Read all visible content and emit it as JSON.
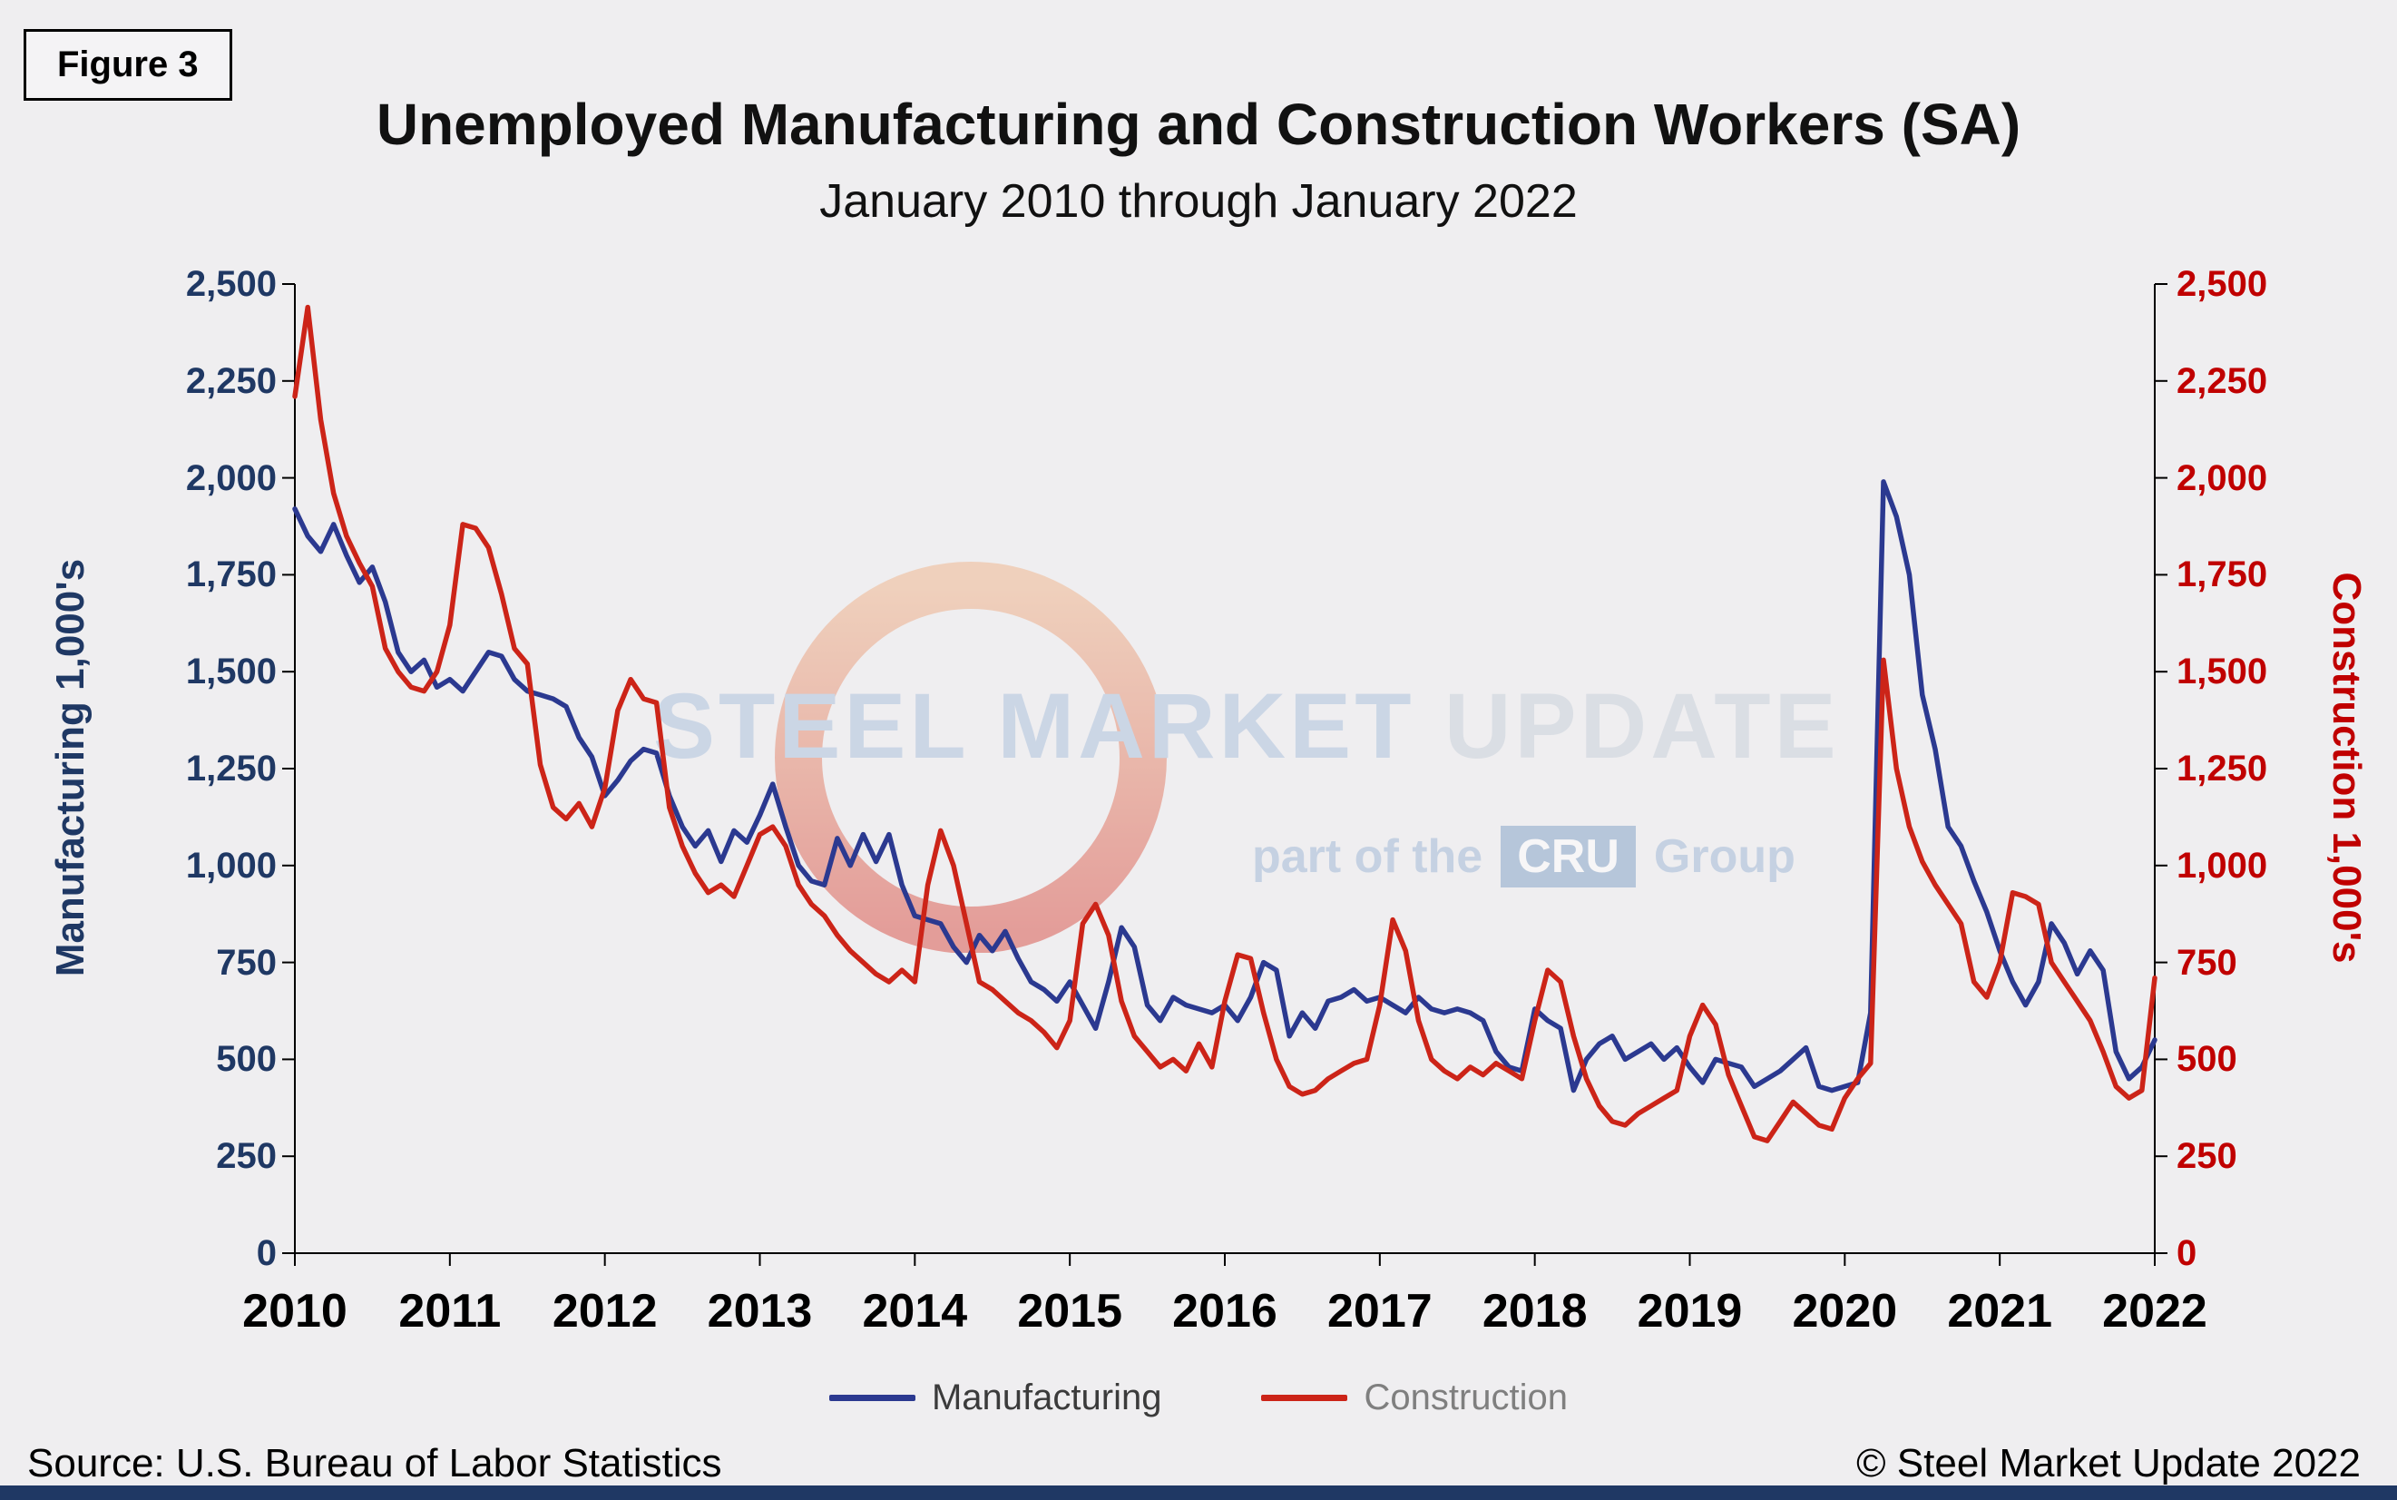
{
  "figure_label": "Figure 3",
  "title": "Unemployed Manufacturing and Construction Workers (SA)",
  "subtitle": "January 2010 through January 2022",
  "source": "Source: U.S. Bureau  of Labor Statistics",
  "copyright": "© Steel Market Update 2022",
  "watermark": {
    "brand_strong": "STEEL MARKET",
    "brand_light": "UPDATE",
    "tagline_prefix": "part of the",
    "tagline_box": "CRU",
    "tagline_suffix": "Group"
  },
  "colors": {
    "background": "#efeef0",
    "manufacturing_line": "#2b3990",
    "construction_line": "#cc2418",
    "left_axis_text": "#1f3864",
    "right_axis_text": "#c00000",
    "axis_line": "#000000",
    "footer_bar": "#1f3864"
  },
  "chart_data": {
    "type": "line",
    "title": "Unemployed Manufacturing and Construction Workers (SA)",
    "subtitle": "January 2010 through January 2022",
    "x_start": "2010-01",
    "x_end": "2022-01",
    "x_frequency": "monthly",
    "x_tick_labels": [
      "2010",
      "2011",
      "2012",
      "2013",
      "2014",
      "2015",
      "2016",
      "2017",
      "2018",
      "2019",
      "2020",
      "2021",
      "2022"
    ],
    "ylim": [
      0,
      2500
    ],
    "y_ticks": [
      0,
      250,
      500,
      750,
      1000,
      1250,
      1500,
      1750,
      2000,
      2250,
      2500
    ],
    "y_tick_labels": [
      "0",
      "250",
      "500",
      "750",
      "1,000",
      "1,250",
      "1,500",
      "1,750",
      "2,000",
      "2,250",
      "2,500"
    ],
    "ylabel_left": "Manufacturing 1,000's",
    "ylabel_right": "Construction 1,000's",
    "grid": false,
    "legend_position": "bottom",
    "series": [
      {
        "name": "Manufacturing",
        "axis": "left",
        "color": "#2b3990",
        "values": [
          1920,
          1850,
          1810,
          1880,
          1800,
          1730,
          1770,
          1680,
          1550,
          1500,
          1530,
          1460,
          1480,
          1450,
          1500,
          1550,
          1540,
          1480,
          1450,
          1440,
          1430,
          1410,
          1330,
          1280,
          1180,
          1220,
          1270,
          1300,
          1290,
          1180,
          1100,
          1050,
          1090,
          1010,
          1090,
          1060,
          1130,
          1210,
          1100,
          1000,
          960,
          950,
          1070,
          1000,
          1080,
          1010,
          1080,
          950,
          870,
          860,
          850,
          790,
          750,
          820,
          780,
          830,
          760,
          700,
          680,
          650,
          700,
          640,
          580,
          700,
          840,
          790,
          640,
          600,
          660,
          640,
          630,
          620,
          640,
          600,
          660,
          750,
          730,
          560,
          620,
          580,
          650,
          660,
          680,
          650,
          660,
          640,
          620,
          660,
          630,
          620,
          630,
          620,
          600,
          520,
          480,
          470,
          630,
          600,
          580,
          420,
          500,
          540,
          560,
          500,
          520,
          540,
          500,
          530,
          480,
          440,
          500,
          490,
          480,
          430,
          450,
          470,
          500,
          530,
          430,
          420,
          430,
          440,
          620,
          1990,
          1900,
          1750,
          1440,
          1300,
          1100,
          1050,
          960,
          880,
          780,
          700,
          640,
          700,
          850,
          800,
          720,
          780,
          730,
          520,
          450,
          480,
          550
        ]
      },
      {
        "name": "Construction",
        "axis": "right",
        "color": "#cc2418",
        "values": [
          2210,
          2440,
          2150,
          1960,
          1850,
          1780,
          1720,
          1560,
          1500,
          1460,
          1450,
          1500,
          1620,
          1880,
          1870,
          1820,
          1700,
          1560,
          1520,
          1260,
          1150,
          1120,
          1160,
          1100,
          1200,
          1400,
          1480,
          1430,
          1420,
          1150,
          1050,
          980,
          930,
          950,
          920,
          1000,
          1080,
          1100,
          1050,
          950,
          900,
          870,
          820,
          780,
          750,
          720,
          700,
          730,
          700,
          950,
          1090,
          1000,
          850,
          700,
          680,
          650,
          620,
          600,
          570,
          530,
          600,
          850,
          900,
          820,
          650,
          560,
          520,
          480,
          500,
          470,
          540,
          480,
          650,
          770,
          760,
          620,
          500,
          430,
          410,
          420,
          450,
          470,
          490,
          500,
          640,
          860,
          780,
          600,
          500,
          470,
          450,
          480,
          460,
          490,
          470,
          450,
          600,
          730,
          700,
          560,
          450,
          380,
          340,
          330,
          360,
          380,
          400,
          420,
          560,
          640,
          590,
          460,
          380,
          300,
          290,
          340,
          390,
          360,
          330,
          320,
          400,
          450,
          490,
          1530,
          1250,
          1100,
          1010,
          950,
          900,
          850,
          700,
          660,
          750,
          930,
          920,
          900,
          750,
          700,
          650,
          600,
          520,
          430,
          400,
          420,
          710
        ]
      }
    ]
  }
}
